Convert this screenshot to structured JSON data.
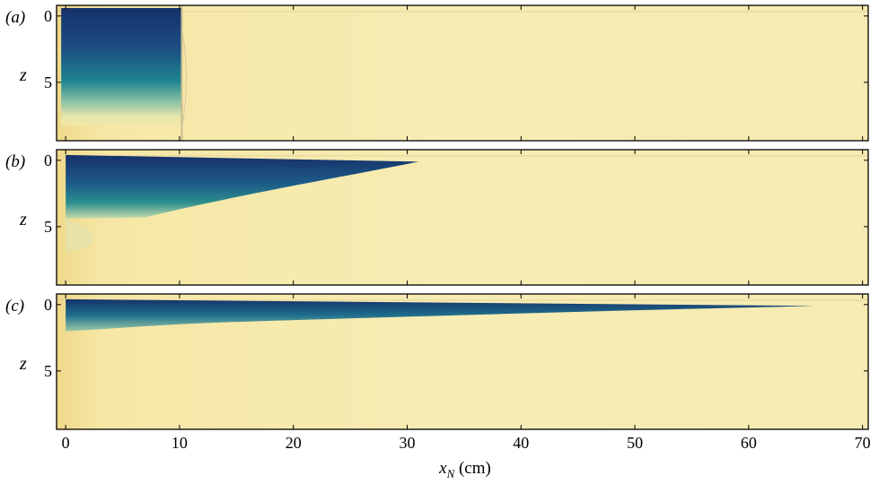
{
  "figure": {
    "panels": [
      {
        "id": "a",
        "label": "(a)",
        "ylabel": "z",
        "ytick_labels": [
          "0",
          "5"
        ],
        "front_x_cm": 10.2,
        "lock_x_cm": 10.0
      },
      {
        "id": "b",
        "label": "(b)",
        "ylabel": "z",
        "ytick_labels": [
          "0",
          "5"
        ],
        "front_x_cm": 31.0
      },
      {
        "id": "c",
        "label": "(c)",
        "ylabel": "z",
        "ytick_labels": [
          "0",
          "5"
        ],
        "front_x_cm": 65.8
      }
    ],
    "xaxis": {
      "label_main": "x",
      "label_sub": "N",
      "label_unit": " (cm)",
      "tick_values": [
        0,
        10,
        20,
        30,
        40,
        50,
        60,
        70
      ],
      "tick_labels": [
        "0",
        "10",
        "20",
        "30",
        "40",
        "50",
        "60",
        "70"
      ],
      "range": [
        -0.8,
        70.5
      ]
    },
    "yaxis": {
      "tick_values": [
        0,
        5
      ],
      "range": [
        -0.8,
        9.4
      ]
    },
    "colors": {
      "background_fluid": "#f5eab0",
      "dense_fluid": "#17336b",
      "mid_fluid": "#1b7d8a",
      "light_fluid": "#b5d2a8",
      "frame": "#000000"
    }
  }
}
